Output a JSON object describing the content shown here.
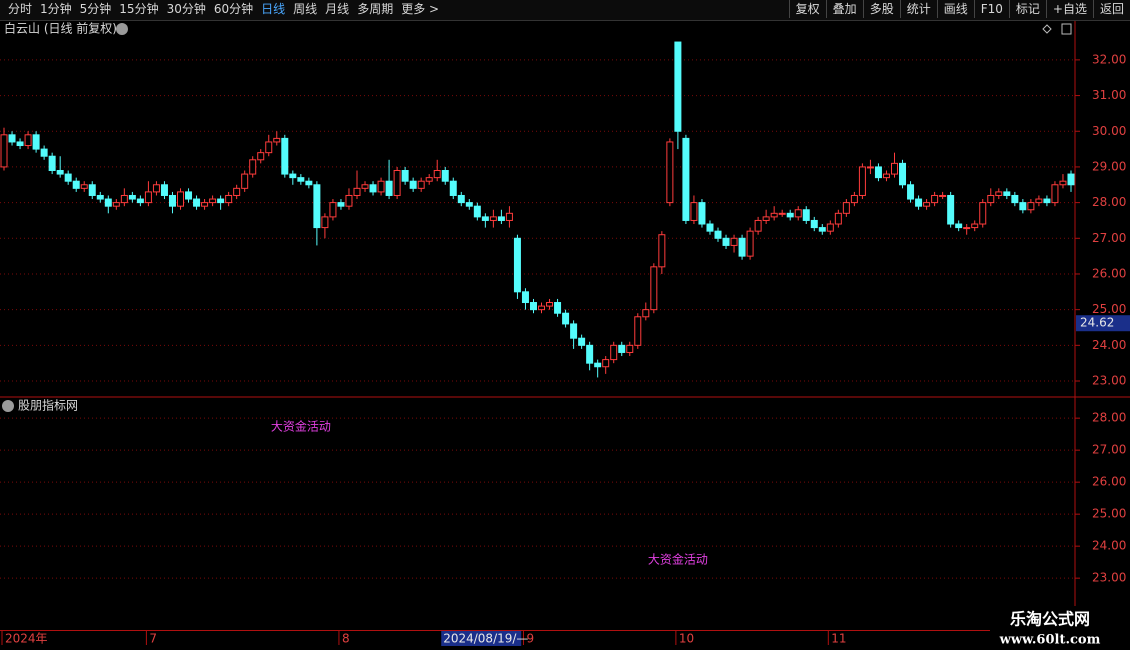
{
  "toolbar": {
    "left": [
      "分时",
      "1分钟",
      "5分钟",
      "15分钟",
      "30分钟",
      "60分钟",
      "日线",
      "周线",
      "月线",
      "多周期",
      "更多 >"
    ],
    "active_index": 6,
    "right": [
      "复权",
      "叠加",
      "多股",
      "统计",
      "画线",
      "F10",
      "标记",
      "+自选",
      "返回"
    ]
  },
  "watermark": {
    "title": "乐淘公式网",
    "url": "www.60lt.com"
  },
  "chart_data": [
    {
      "type": "candlestick",
      "title": "白云山 (日线 前复权)",
      "up_color": "#ff3c3c",
      "down_color": "#54fcfc",
      "grid": true,
      "ylim": [
        22.58,
        33.09
      ],
      "yticks": [
        {
          "value": 23,
          "label": "23.00"
        },
        {
          "value": 24,
          "label": "24.00"
        },
        {
          "value": 25,
          "label": "25.00"
        },
        {
          "value": 26,
          "label": "26.00"
        },
        {
          "value": 27,
          "label": "27.00"
        },
        {
          "value": 28,
          "label": "28.00"
        },
        {
          "value": 29,
          "label": "29.00"
        },
        {
          "value": 30,
          "label": "30.00"
        },
        {
          "value": 31,
          "label": "31.00"
        },
        {
          "value": 32,
          "label": "32.00"
        }
      ],
      "cursor_price": 24.62,
      "x_labels": [
        {
          "index": 0,
          "label": "2024年"
        },
        {
          "index": 18,
          "label": "7"
        },
        {
          "index": 42,
          "label": "8"
        },
        {
          "index": 65,
          "label": "9"
        },
        {
          "index": 84,
          "label": "10"
        },
        {
          "index": 103,
          "label": "11"
        }
      ],
      "cursor_date": {
        "index": 55,
        "label": "2024/08/19/—"
      },
      "open": [
        29.0,
        29.9,
        29.7,
        29.6,
        29.9,
        29.5,
        29.3,
        28.9,
        28.8,
        28.6,
        28.4,
        28.5,
        28.2,
        28.1,
        27.9,
        28.0,
        28.2,
        28.1,
        28.0,
        28.3,
        28.5,
        28.2,
        27.9,
        28.3,
        28.1,
        27.9,
        28.0,
        28.1,
        28.0,
        28.2,
        28.4,
        28.8,
        29.2,
        29.4,
        29.7,
        29.8,
        28.8,
        28.7,
        28.6,
        28.5,
        27.3,
        27.6,
        28.0,
        27.9,
        28.2,
        28.4,
        28.5,
        28.3,
        28.6,
        28.2,
        28.9,
        28.6,
        28.4,
        28.6,
        28.7,
        28.9,
        28.6,
        28.2,
        28.0,
        27.9,
        27.6,
        27.5,
        27.6,
        27.5,
        27.0,
        25.5,
        25.2,
        25.0,
        25.1,
        25.2,
        24.9,
        24.6,
        24.2,
        24.0,
        23.5,
        23.4,
        23.6,
        24.0,
        23.8,
        24.0,
        24.8,
        25.0,
        26.2,
        28.0,
        32.5,
        29.8,
        27.5,
        28.0,
        27.4,
        27.2,
        27.0,
        26.8,
        27.0,
        26.5,
        27.2,
        27.5,
        27.6,
        27.7,
        27.7,
        27.6,
        27.8,
        27.5,
        27.3,
        27.2,
        27.4,
        27.7,
        28.0,
        28.2,
        29.0,
        29.0,
        28.7,
        28.8,
        29.1,
        28.5,
        28.1,
        27.9,
        28.0,
        28.2,
        28.2,
        27.4,
        27.3,
        27.3,
        27.4,
        28.0,
        28.2,
        28.3,
        28.2,
        28.0,
        27.8,
        28.0,
        28.1,
        28.0,
        28.5,
        28.8
      ],
      "high": [
        30.1,
        30.0,
        29.8,
        30.0,
        30.0,
        29.6,
        29.4,
        29.3,
        28.9,
        28.7,
        28.6,
        28.6,
        28.3,
        28.2,
        28.1,
        28.4,
        28.3,
        28.2,
        28.6,
        28.6,
        28.6,
        28.3,
        28.4,
        28.4,
        28.2,
        28.1,
        28.2,
        28.2,
        28.3,
        28.5,
        28.9,
        29.3,
        29.5,
        29.9,
        30.0,
        29.9,
        28.9,
        28.8,
        28.7,
        28.6,
        27.7,
        28.1,
        28.1,
        28.4,
        28.9,
        28.6,
        28.6,
        28.7,
        29.2,
        29.0,
        29.0,
        28.7,
        28.7,
        28.8,
        29.2,
        29.0,
        28.7,
        28.3,
        28.1,
        28.0,
        27.7,
        27.8,
        27.8,
        27.9,
        27.1,
        25.6,
        25.3,
        25.2,
        25.3,
        25.3,
        25.0,
        24.7,
        24.3,
        24.1,
        23.6,
        23.7,
        24.1,
        24.1,
        24.1,
        24.9,
        25.2,
        26.3,
        27.2,
        29.8,
        32.5,
        29.9,
        28.2,
        28.1,
        27.5,
        27.3,
        27.1,
        27.1,
        27.1,
        27.3,
        27.6,
        27.8,
        27.9,
        27.8,
        27.8,
        27.9,
        27.9,
        27.6,
        27.4,
        27.5,
        27.8,
        28.1,
        28.3,
        29.1,
        29.2,
        29.1,
        28.9,
        29.4,
        29.2,
        28.6,
        28.2,
        28.1,
        28.3,
        28.3,
        28.3,
        27.5,
        27.4,
        27.5,
        28.1,
        28.4,
        28.4,
        28.4,
        28.3,
        28.1,
        28.1,
        28.2,
        28.2,
        28.6,
        28.8,
        28.9
      ],
      "low": [
        28.9,
        29.6,
        29.5,
        29.5,
        29.4,
        29.2,
        28.8,
        28.7,
        28.5,
        28.3,
        28.3,
        28.1,
        28.0,
        27.7,
        27.8,
        27.9,
        28.0,
        27.9,
        27.9,
        28.2,
        28.1,
        27.7,
        27.8,
        28.0,
        27.8,
        27.8,
        27.9,
        27.8,
        27.9,
        28.1,
        28.3,
        28.7,
        29.1,
        29.3,
        29.6,
        28.7,
        28.5,
        28.5,
        28.4,
        26.8,
        27.0,
        27.5,
        27.8,
        27.8,
        28.1,
        28.3,
        28.2,
        28.2,
        28.1,
        28.1,
        28.5,
        28.3,
        28.3,
        28.5,
        28.6,
        28.5,
        28.1,
        27.9,
        27.8,
        27.5,
        27.3,
        27.3,
        27.4,
        27.3,
        25.3,
        25.0,
        24.9,
        24.9,
        25.0,
        24.8,
        24.5,
        23.9,
        23.9,
        23.3,
        23.1,
        23.2,
        23.5,
        23.7,
        23.7,
        23.9,
        24.7,
        24.9,
        26.0,
        27.9,
        29.5,
        27.4,
        27.4,
        27.3,
        27.1,
        26.9,
        26.7,
        26.6,
        26.4,
        26.4,
        27.1,
        27.4,
        27.5,
        27.6,
        27.5,
        27.5,
        27.4,
        27.2,
        27.1,
        27.1,
        27.3,
        27.6,
        27.9,
        28.1,
        28.8,
        28.6,
        28.6,
        28.7,
        28.4,
        28.0,
        27.8,
        27.8,
        27.9,
        28.1,
        27.3,
        27.2,
        27.1,
        27.2,
        27.3,
        27.9,
        28.1,
        28.1,
        27.9,
        27.7,
        27.7,
        27.9,
        27.9,
        27.9,
        28.4,
        28.3
      ],
      "close": [
        29.9,
        29.7,
        29.6,
        29.9,
        29.5,
        29.3,
        28.9,
        28.8,
        28.6,
        28.4,
        28.5,
        28.2,
        28.1,
        27.9,
        28.0,
        28.2,
        28.1,
        28.0,
        28.3,
        28.5,
        28.2,
        27.9,
        28.3,
        28.1,
        27.9,
        28.0,
        28.1,
        28.0,
        28.2,
        28.4,
        28.8,
        29.2,
        29.4,
        29.7,
        29.8,
        28.8,
        28.7,
        28.6,
        28.5,
        27.3,
        27.6,
        28.0,
        27.9,
        28.2,
        28.4,
        28.5,
        28.3,
        28.6,
        28.2,
        28.9,
        28.6,
        28.4,
        28.6,
        28.7,
        28.9,
        28.6,
        28.2,
        28.0,
        27.9,
        27.6,
        27.5,
        27.6,
        27.5,
        27.7,
        25.5,
        25.2,
        25.0,
        25.1,
        25.2,
        24.9,
        24.6,
        24.2,
        24.0,
        23.5,
        23.4,
        23.6,
        24.0,
        23.8,
        24.0,
        24.8,
        25.0,
        26.2,
        27.1,
        29.7,
        30.0,
        27.5,
        28.0,
        27.4,
        27.2,
        27.0,
        26.8,
        27.0,
        26.5,
        27.2,
        27.5,
        27.6,
        27.7,
        27.7,
        27.6,
        27.8,
        27.5,
        27.3,
        27.2,
        27.4,
        27.7,
        28.0,
        28.2,
        29.0,
        29.0,
        28.7,
        28.8,
        29.1,
        28.5,
        28.1,
        27.9,
        28.0,
        28.2,
        28.2,
        27.4,
        27.3,
        27.3,
        27.4,
        28.0,
        28.2,
        28.3,
        28.2,
        28.0,
        27.8,
        28.0,
        28.1,
        28.0,
        28.5,
        28.6,
        28.5
      ]
    },
    {
      "type": "indicator",
      "title": "股朋指标网",
      "color": "#e040e0",
      "grid": true,
      "ylim": [
        21.38,
        28.63
      ],
      "yticks": [
        {
          "value": 23,
          "label": "23.00"
        },
        {
          "value": 24,
          "label": "24.00"
        },
        {
          "value": 25,
          "label": "25.00"
        },
        {
          "value": 26,
          "label": "26.00"
        },
        {
          "value": 27,
          "label": "27.00"
        },
        {
          "value": 28,
          "label": "28.00"
        }
      ],
      "annotations": [
        {
          "text": "大资金活动",
          "index": 37,
          "value": 27.72
        },
        {
          "text": "大资金活动",
          "index": 84,
          "value": 23.56
        }
      ]
    }
  ]
}
